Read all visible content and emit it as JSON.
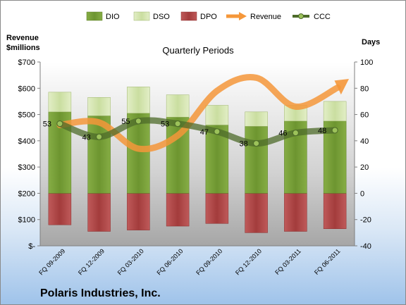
{
  "company": "Polaris Industries, Inc.",
  "chart_data": {
    "type": "bar",
    "title": "Quarterly Periods",
    "y_left_label_line1": "Revenue",
    "y_left_label_line2": "$millions",
    "y_right_label": "Days",
    "categories": [
      "FQ 09-2009",
      "FQ 12-2009",
      "FQ 03-2010",
      "FQ 06-2010",
      "FQ 09-2010",
      "FQ 12-2010",
      "FQ 03-2011",
      "FQ 06-2011"
    ],
    "y_left_ticks": [
      "$-",
      "$100",
      "$200",
      "$300",
      "$400",
      "$500",
      "$600",
      "$700"
    ],
    "y_left_lim": [
      0,
      700
    ],
    "y_right_ticks": [
      "-40",
      "-20",
      "0",
      "20",
      "40",
      "60",
      "80",
      "100"
    ],
    "y_right_lim": [
      -40,
      100
    ],
    "grid": false,
    "legend_position": "top",
    "series": [
      {
        "name": "DIO",
        "axis": "right",
        "kind": "bar",
        "color": "#7aa23a",
        "values": [
          62,
          59,
          61,
          58,
          52,
          51,
          55,
          55
        ]
      },
      {
        "name": "DSO",
        "axis": "right",
        "kind": "bar-stacked",
        "color": "#d7e6b4",
        "values": [
          15,
          14,
          20,
          17,
          15,
          11,
          12,
          15
        ]
      },
      {
        "name": "DPO",
        "axis": "right",
        "kind": "bar-negative",
        "color": "#b24a4a",
        "values": [
          -24,
          -29,
          -28,
          -25,
          -23,
          -30,
          -29,
          -27
        ]
      },
      {
        "name": "Revenue",
        "axis": "left",
        "kind": "line",
        "color": "#f5973a",
        "values": [
          460,
          470,
          370,
          420,
          590,
          640,
          530,
          600
        ]
      },
      {
        "name": "CCC",
        "axis": "right",
        "kind": "line",
        "color": "#4d6b2a",
        "values": [
          53,
          43,
          55,
          53,
          47,
          38,
          46,
          48
        ],
        "labels": [
          "53",
          "43",
          "55",
          "53",
          "47",
          "38",
          "46",
          "48"
        ]
      }
    ]
  }
}
